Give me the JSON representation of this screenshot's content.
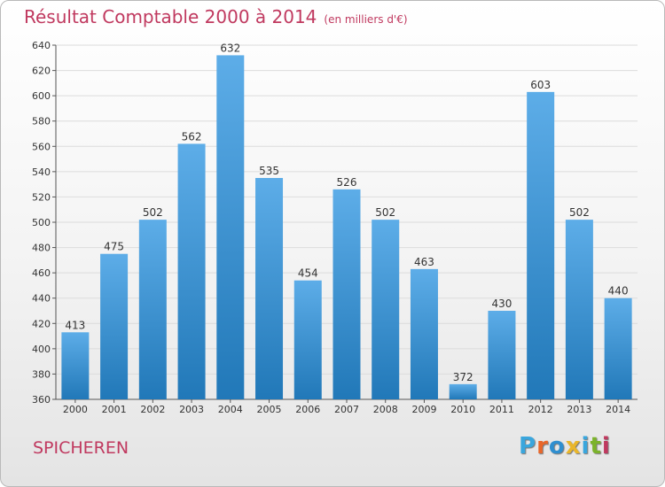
{
  "title": "Résultat Comptable 2000 à 2014",
  "subtitle": "(en milliers d'€)",
  "commune": "SPICHEREN",
  "logo_text": "Proxiti",
  "colors": {
    "title": "#c0395f",
    "bar_top": "#5dade8",
    "bar_bottom": "#2178b8",
    "grid": "#dcdcdc",
    "axis": "#555555",
    "logo_letters": [
      "#3aa6dd",
      "#e9672a",
      "#2f8fd0",
      "#e9b62b",
      "#3aa6dd",
      "#7cb32b",
      "#c0395f"
    ]
  },
  "chart_data": {
    "type": "bar",
    "title": "Résultat Comptable 2000 à 2014",
    "xlabel": "",
    "ylabel": "",
    "categories": [
      "2000",
      "2001",
      "2002",
      "2003",
      "2004",
      "2005",
      "2006",
      "2007",
      "2008",
      "2009",
      "2010",
      "2011",
      "2012",
      "2013",
      "2014"
    ],
    "values": [
      413,
      475,
      502,
      562,
      632,
      535,
      454,
      526,
      502,
      463,
      372,
      430,
      603,
      502,
      440
    ],
    "ylim": [
      360,
      640
    ],
    "yticks": [
      360,
      380,
      400,
      420,
      440,
      460,
      480,
      500,
      520,
      540,
      560,
      580,
      600,
      620,
      640
    ],
    "grid": true,
    "data_labels": true
  }
}
